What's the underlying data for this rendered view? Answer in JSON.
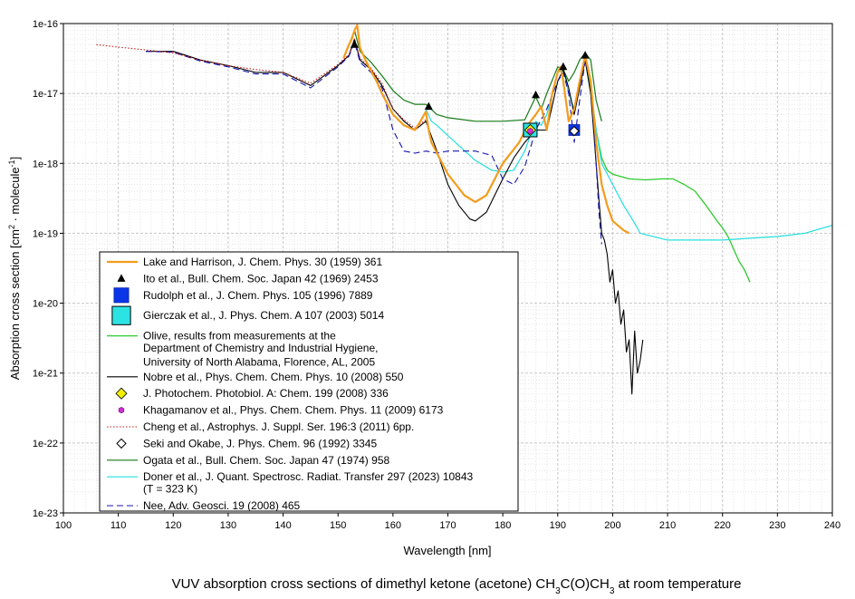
{
  "chart_data": {
    "type": "line",
    "caption_parts": [
      "VUV absorption cross sections of dimethyl ketone (acetone) CH",
      "3",
      "C(O)CH",
      "3",
      " at room temperature"
    ],
    "xlabel": "Wavelength [nm]",
    "ylabel_parts": [
      "Absorption cross section [cm",
      "2",
      " · molecule",
      "-1",
      "]"
    ],
    "xlim": [
      100,
      240
    ],
    "ylim": [
      1e-23,
      1e-16
    ],
    "yscale": "log",
    "grid": true,
    "legend_position": "bottom-left",
    "x_ticks": [
      100,
      110,
      120,
      130,
      140,
      150,
      160,
      170,
      180,
      190,
      200,
      210,
      220,
      230,
      240
    ],
    "x_tick_labels": [
      "100",
      "110",
      "120",
      "130",
      "140",
      "150",
      "160",
      "170",
      "180",
      "190",
      "200",
      "210",
      "220",
      "230",
      "240"
    ],
    "y_ticks": [
      1e-23,
      1e-22,
      1e-21,
      1e-20,
      1e-19,
      1e-18,
      1e-17,
      1e-16
    ],
    "y_tick_labels": [
      "1e-23",
      "1e-22",
      "1e-21",
      "1e-20",
      "1e-19",
      "1e-18",
      "1e-17",
      "1e-16"
    ],
    "series": [
      {
        "name": "Lake and Harrison, J. Chem. Phys. 30 (1959) 361",
        "style": "line",
        "color": "#f39c1d",
        "width": 2.2,
        "x": [
          151,
          152,
          152.5,
          153,
          153.5,
          154,
          155,
          157,
          158,
          160,
          162,
          164,
          165,
          166,
          166.5,
          167,
          170,
          173,
          175,
          177,
          180,
          183,
          184.5,
          186,
          187,
          188,
          189,
          190,
          190.5,
          191,
          192,
          193,
          194,
          195,
          196,
          197,
          198,
          199,
          200,
          202,
          203
        ],
        "y": [
          3.2e-17,
          5e-17,
          6e-17,
          8e-17,
          9.5e-17,
          4.5e-17,
          3e-17,
          1.5e-17,
          1e-17,
          5e-18,
          3.5e-18,
          3e-18,
          4e-18,
          5.5e-18,
          3e-18,
          2e-18,
          7e-19,
          3.5e-19,
          2.8e-19,
          3.5e-19,
          1e-18,
          2e-18,
          3.5e-18,
          5e-18,
          6.5e-18,
          3e-18,
          1e-17,
          2e-17,
          2.4e-17,
          1.5e-17,
          4e-18,
          6e-18,
          1.5e-17,
          3.5e-17,
          1.5e-17,
          2e-18,
          5e-19,
          2.5e-19,
          1.5e-19,
          1.1e-19,
          1e-19
        ]
      },
      {
        "name": "Ito et al., Bull. Chem. Soc. Japan 42 (1969) 2453",
        "style": "marker",
        "marker": "triangle",
        "color": "#000000",
        "x": [
          153,
          166.5,
          186,
          191,
          195
        ],
        "y": [
          5e-17,
          6.5e-18,
          9.5e-18,
          2.4e-17,
          3.5e-17
        ]
      },
      {
        "name": "Rudolph et al., J. Chem. Phys. 105 (1996) 7889",
        "style": "marker",
        "marker": "square",
        "color": "#0a35e6",
        "x": [
          185,
          193
        ],
        "y": [
          3e-18,
          3e-18
        ]
      },
      {
        "name": "Gierczak et al., J. Phys. Chem. A 107 (2003) 5014",
        "style": "marker",
        "marker": "square-lg",
        "color": "#2ce3e3",
        "x": [
          185
        ],
        "y": [
          3e-18
        ]
      },
      {
        "name": "Olive, results from measurements at the",
        "name_cont": [
          "Department of Chemistry and Industrial Hygiene,",
          "University of North Alabama, Florence, AL, 2005"
        ],
        "style": "line",
        "color": "#2ecb2e",
        "width": 1.3,
        "x": [
          195,
          196,
          197,
          198,
          199,
          200,
          203,
          206,
          209,
          211,
          213,
          215,
          217,
          219,
          220,
          221,
          222,
          223,
          224,
          225
        ],
        "y": [
          3e-17,
          1.2e-17,
          3e-18,
          1.2e-18,
          8e-19,
          7e-19,
          6e-19,
          5.8e-19,
          6e-19,
          6e-19,
          5e-19,
          4e-19,
          2.5e-19,
          1.5e-19,
          1.2e-19,
          9e-20,
          6e-20,
          4e-20,
          3e-20,
          2e-20
        ]
      },
      {
        "name": "Nobre et al., Phys. Chem. Chem. Phys. 10 (2008) 550",
        "style": "line",
        "color": "#000000",
        "width": 1.1,
        "x": [
          115,
          120,
          125,
          130,
          135,
          140,
          145,
          150,
          152,
          153,
          154,
          156,
          158,
          160,
          162,
          164,
          166,
          168,
          170,
          172,
          174,
          175,
          177,
          180,
          182,
          184,
          186,
          188,
          190,
          191,
          192,
          193,
          194,
          195,
          196,
          197,
          197.5,
          198,
          198.5,
          199,
          199.5,
          200,
          200.5,
          201,
          201.5,
          202,
          202.5,
          203,
          203.5,
          204,
          204.5,
          205,
          205.5
        ],
        "y": [
          4e-17,
          4e-17,
          3e-17,
          2.5e-17,
          2e-17,
          2e-17,
          1.3e-17,
          2.5e-17,
          3.5e-17,
          6e-17,
          3e-17,
          2.2e-17,
          1.3e-17,
          6e-18,
          4e-18,
          3e-18,
          4e-18,
          1.5e-18,
          5e-19,
          2.5e-19,
          1.6e-19,
          1.5e-19,
          2e-19,
          6e-19,
          1.2e-18,
          2e-18,
          3e-18,
          3e-18,
          1.5e-17,
          2.2e-17,
          1.2e-17,
          5e-18,
          1.2e-17,
          3e-17,
          1e-17,
          1e-18,
          3e-19,
          1e-19,
          8e-20,
          5e-20,
          2e-20,
          3e-20,
          1e-20,
          1.5e-20,
          5e-21,
          8e-21,
          2e-21,
          3e-21,
          5e-22,
          4e-21,
          1e-21,
          1.5e-21,
          3e-21
        ]
      },
      {
        "name": "J. Photochem. Photobiol. A: Chem. 199 (2008) 336",
        "style": "marker",
        "marker": "diamond",
        "color": "#f2f200",
        "x": [
          185
        ],
        "y": [
          3e-18
        ]
      },
      {
        "name": "Khagamanov et al., Phys. Chem. Chem. Phys. 11 (2009) 6173",
        "style": "marker",
        "marker": "hexagon",
        "color": "#cf2ed6",
        "x": [
          185
        ],
        "y": [
          2.9e-18
        ]
      },
      {
        "name": "Cheng et al., Astrophys. J. Suppl. Ser. 196:3 (2011) 6pp.",
        "style": "dotted",
        "color": "#c81d1d",
        "width": 1.1,
        "x": [
          106,
          110,
          115,
          120,
          125,
          130,
          135,
          140,
          145,
          150,
          152,
          153,
          154,
          156,
          158,
          160,
          162,
          164,
          166
        ],
        "y": [
          5e-17,
          4.6e-17,
          4.2e-17,
          3.8e-17,
          3e-17,
          2.5e-17,
          2.2e-17,
          2e-17,
          1.4e-17,
          2.6e-17,
          3.6e-17,
          6e-17,
          3.2e-17,
          2.3e-17,
          1.4e-17,
          6e-18,
          4.2e-18,
          3.2e-18,
          4.2e-18
        ]
      },
      {
        "name": "Seki and Okabe, J. Phys. Chem. 96 (1992) 3345",
        "style": "marker",
        "marker": "diamond-open",
        "color": "#000000",
        "x": [
          193
        ],
        "y": [
          2.9e-18
        ]
      },
      {
        "name": "Ogata et al., Bull. Chem. Soc. Japan 47 (1974) 958",
        "style": "line",
        "color": "#177a17",
        "width": 1.2,
        "x": [
          152,
          153,
          154,
          156,
          158,
          160,
          162,
          164,
          166,
          168,
          170,
          175,
          180,
          184,
          186,
          187,
          188,
          190,
          191,
          192,
          193,
          194,
          195,
          196,
          197,
          198
        ],
        "y": [
          5e-17,
          8e-17,
          4e-17,
          2.8e-17,
          1.8e-17,
          1.1e-17,
          8e-18,
          7e-18,
          7e-18,
          5e-18,
          4.5e-18,
          4e-18,
          4e-18,
          4.2e-18,
          9e-18,
          6e-18,
          1e-17,
          2.4e-17,
          2.2e-17,
          1.5e-17,
          2e-17,
          3e-17,
          3.8e-17,
          3e-17,
          8e-18,
          4e-18
        ]
      },
      {
        "name": "Doner et al., J. Quant. Spectrosc. Radiat. Transfer 297 (2023) 10843",
        "name_cont": [
          "(T = 323 K)"
        ],
        "style": "line",
        "color": "#26dede",
        "width": 1.2,
        "x": [
          166,
          167,
          168,
          170,
          172,
          175,
          178,
          180,
          182,
          184,
          185,
          186,
          187,
          188,
          189,
          190,
          191,
          192,
          193,
          194,
          195,
          196,
          197,
          198,
          200,
          202,
          204,
          205,
          210,
          215,
          220,
          225,
          230,
          235,
          240
        ],
        "y": [
          6e-18,
          4e-18,
          3.5e-18,
          2.5e-18,
          1.8e-18,
          1.1e-18,
          8e-19,
          7.5e-19,
          8e-19,
          1.5e-18,
          2.5e-18,
          4e-18,
          3.5e-18,
          5e-18,
          1e-17,
          2e-17,
          2.2e-17,
          1e-17,
          6e-18,
          1.5e-17,
          3e-17,
          1e-17,
          3e-18,
          1e-18,
          5e-19,
          2.5e-19,
          1.4e-19,
          1e-19,
          8e-20,
          8e-20,
          8e-20,
          8.5e-20,
          9e-20,
          1e-19,
          1.3e-19
        ]
      },
      {
        "name": "Nee, Adv. Geosci. 19 (2008) 465",
        "style": "dashed",
        "color": "#1515b0",
        "width": 1.1,
        "x": [
          115,
          120,
          125,
          130,
          135,
          140,
          145,
          150,
          152,
          153,
          154,
          156,
          158,
          160,
          162,
          164,
          166,
          168,
          170,
          175,
          178,
          180,
          182,
          184,
          186,
          188,
          190,
          191,
          192,
          193,
          194,
          195,
          196,
          197,
          197.5,
          198
        ],
        "y": [
          4e-17,
          3.9e-17,
          2.9e-17,
          2.4e-17,
          1.9e-17,
          1.9e-17,
          1.2e-17,
          2.4e-17,
          3.4e-17,
          5.5e-17,
          2.8e-17,
          2e-17,
          1.2e-17,
          3e-18,
          1.5e-18,
          1.4e-18,
          1.5e-18,
          1.4e-18,
          1.5e-18,
          1.5e-18,
          1.3e-18,
          6e-19,
          5e-19,
          9e-19,
          3e-18,
          6e-18,
          1.5e-17,
          2e-17,
          1e-17,
          2e-18,
          8e-18,
          3e-17,
          1.5e-17,
          1e-18,
          2e-19,
          7e-20
        ]
      }
    ]
  }
}
